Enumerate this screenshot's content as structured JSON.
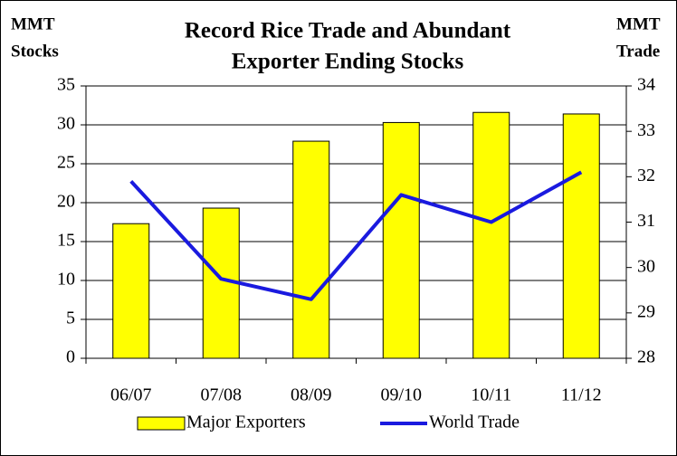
{
  "chart_data": {
    "type": "bar-line",
    "title": [
      "Record Rice Trade and Abundant",
      "Exporter Ending Stocks"
    ],
    "y_label": [
      "MMT",
      "Stocks"
    ],
    "y2_label": [
      "MMT",
      "Trade"
    ],
    "categories": [
      "06/07",
      "07/08",
      "08/09",
      "09/10",
      "10/11",
      "11/12"
    ],
    "series": [
      {
        "name": "Major Exporters",
        "type": "bar",
        "color": "#ffff00",
        "values": [
          17.3,
          19.3,
          27.9,
          30.3,
          31.6,
          31.4
        ]
      },
      {
        "name": "World Trade",
        "type": "line",
        "axis": "y2",
        "color": "#1a1adf",
        "values": [
          31.9,
          29.75,
          29.3,
          31.6,
          31.0,
          32.1
        ]
      }
    ],
    "ylim": [
      0,
      35
    ],
    "yticks": [
      0,
      5,
      10,
      15,
      20,
      25,
      30,
      35
    ],
    "y2lim": [
      28,
      34
    ],
    "y2ticks": [
      28,
      29,
      30,
      31,
      32,
      33,
      34
    ],
    "grid": true
  }
}
